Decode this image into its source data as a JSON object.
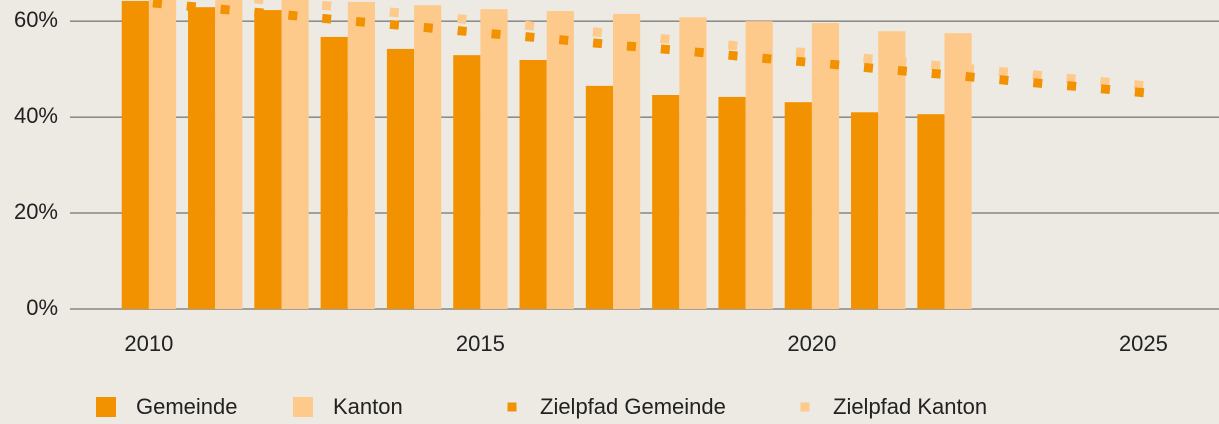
{
  "chart_data": {
    "type": "bar",
    "x": [
      2010,
      2011,
      2012,
      2013,
      2014,
      2015,
      2016,
      2017,
      2018,
      2019,
      2020,
      2021,
      2022,
      2023,
      2024,
      2025
    ],
    "series": [
      {
        "name": "Gemeinde",
        "color": "#f39200",
        "mark": "bar",
        "values": [
          64.2,
          62.9,
          62.3,
          56.7,
          54.2,
          52.9,
          51.9,
          46.5,
          44.6,
          44.2,
          43.1,
          41.0,
          40.6,
          0,
          0,
          0
        ]
      },
      {
        "name": "Kanton",
        "color": "#fdca8c",
        "mark": "bar",
        "values": [
          66.0,
          65.5,
          65.0,
          64.0,
          63.3,
          62.5,
          62.1,
          61.5,
          60.8,
          60.0,
          59.6,
          57.9,
          57.5,
          0,
          0,
          0
        ]
      },
      {
        "name": "Zielpfad Gemeinde",
        "color": "#f39200",
        "mark": "dots",
        "values": [
          63.8,
          62.5,
          61.3,
          60.0,
          58.8,
          57.5,
          56.3,
          55.0,
          53.8,
          52.5,
          51.3,
          50.0,
          48.8,
          47.5,
          46.3,
          45.0
        ]
      },
      {
        "name": "Zielpfad Kanton",
        "color": "#fdca8c",
        "mark": "dots",
        "values": [
          66.7,
          65.4,
          64.0,
          62.7,
          61.3,
          60.0,
          58.6,
          57.3,
          55.9,
          54.6,
          53.2,
          51.9,
          50.5,
          49.2,
          47.8,
          46.5
        ]
      }
    ],
    "xlim": [
      2008.81,
      2026.14
    ],
    "xticks": [
      2010,
      2015,
      2020,
      2025
    ],
    "ylim": [
      0,
      64.4
    ],
    "yticks": [
      {
        "value": 0,
        "label": "0%"
      },
      {
        "value": 20,
        "label": "20%"
      },
      {
        "value": 40,
        "label": "40%"
      },
      {
        "value": 60,
        "label": "60%"
      }
    ],
    "grid": true,
    "legend": "bottom"
  }
}
